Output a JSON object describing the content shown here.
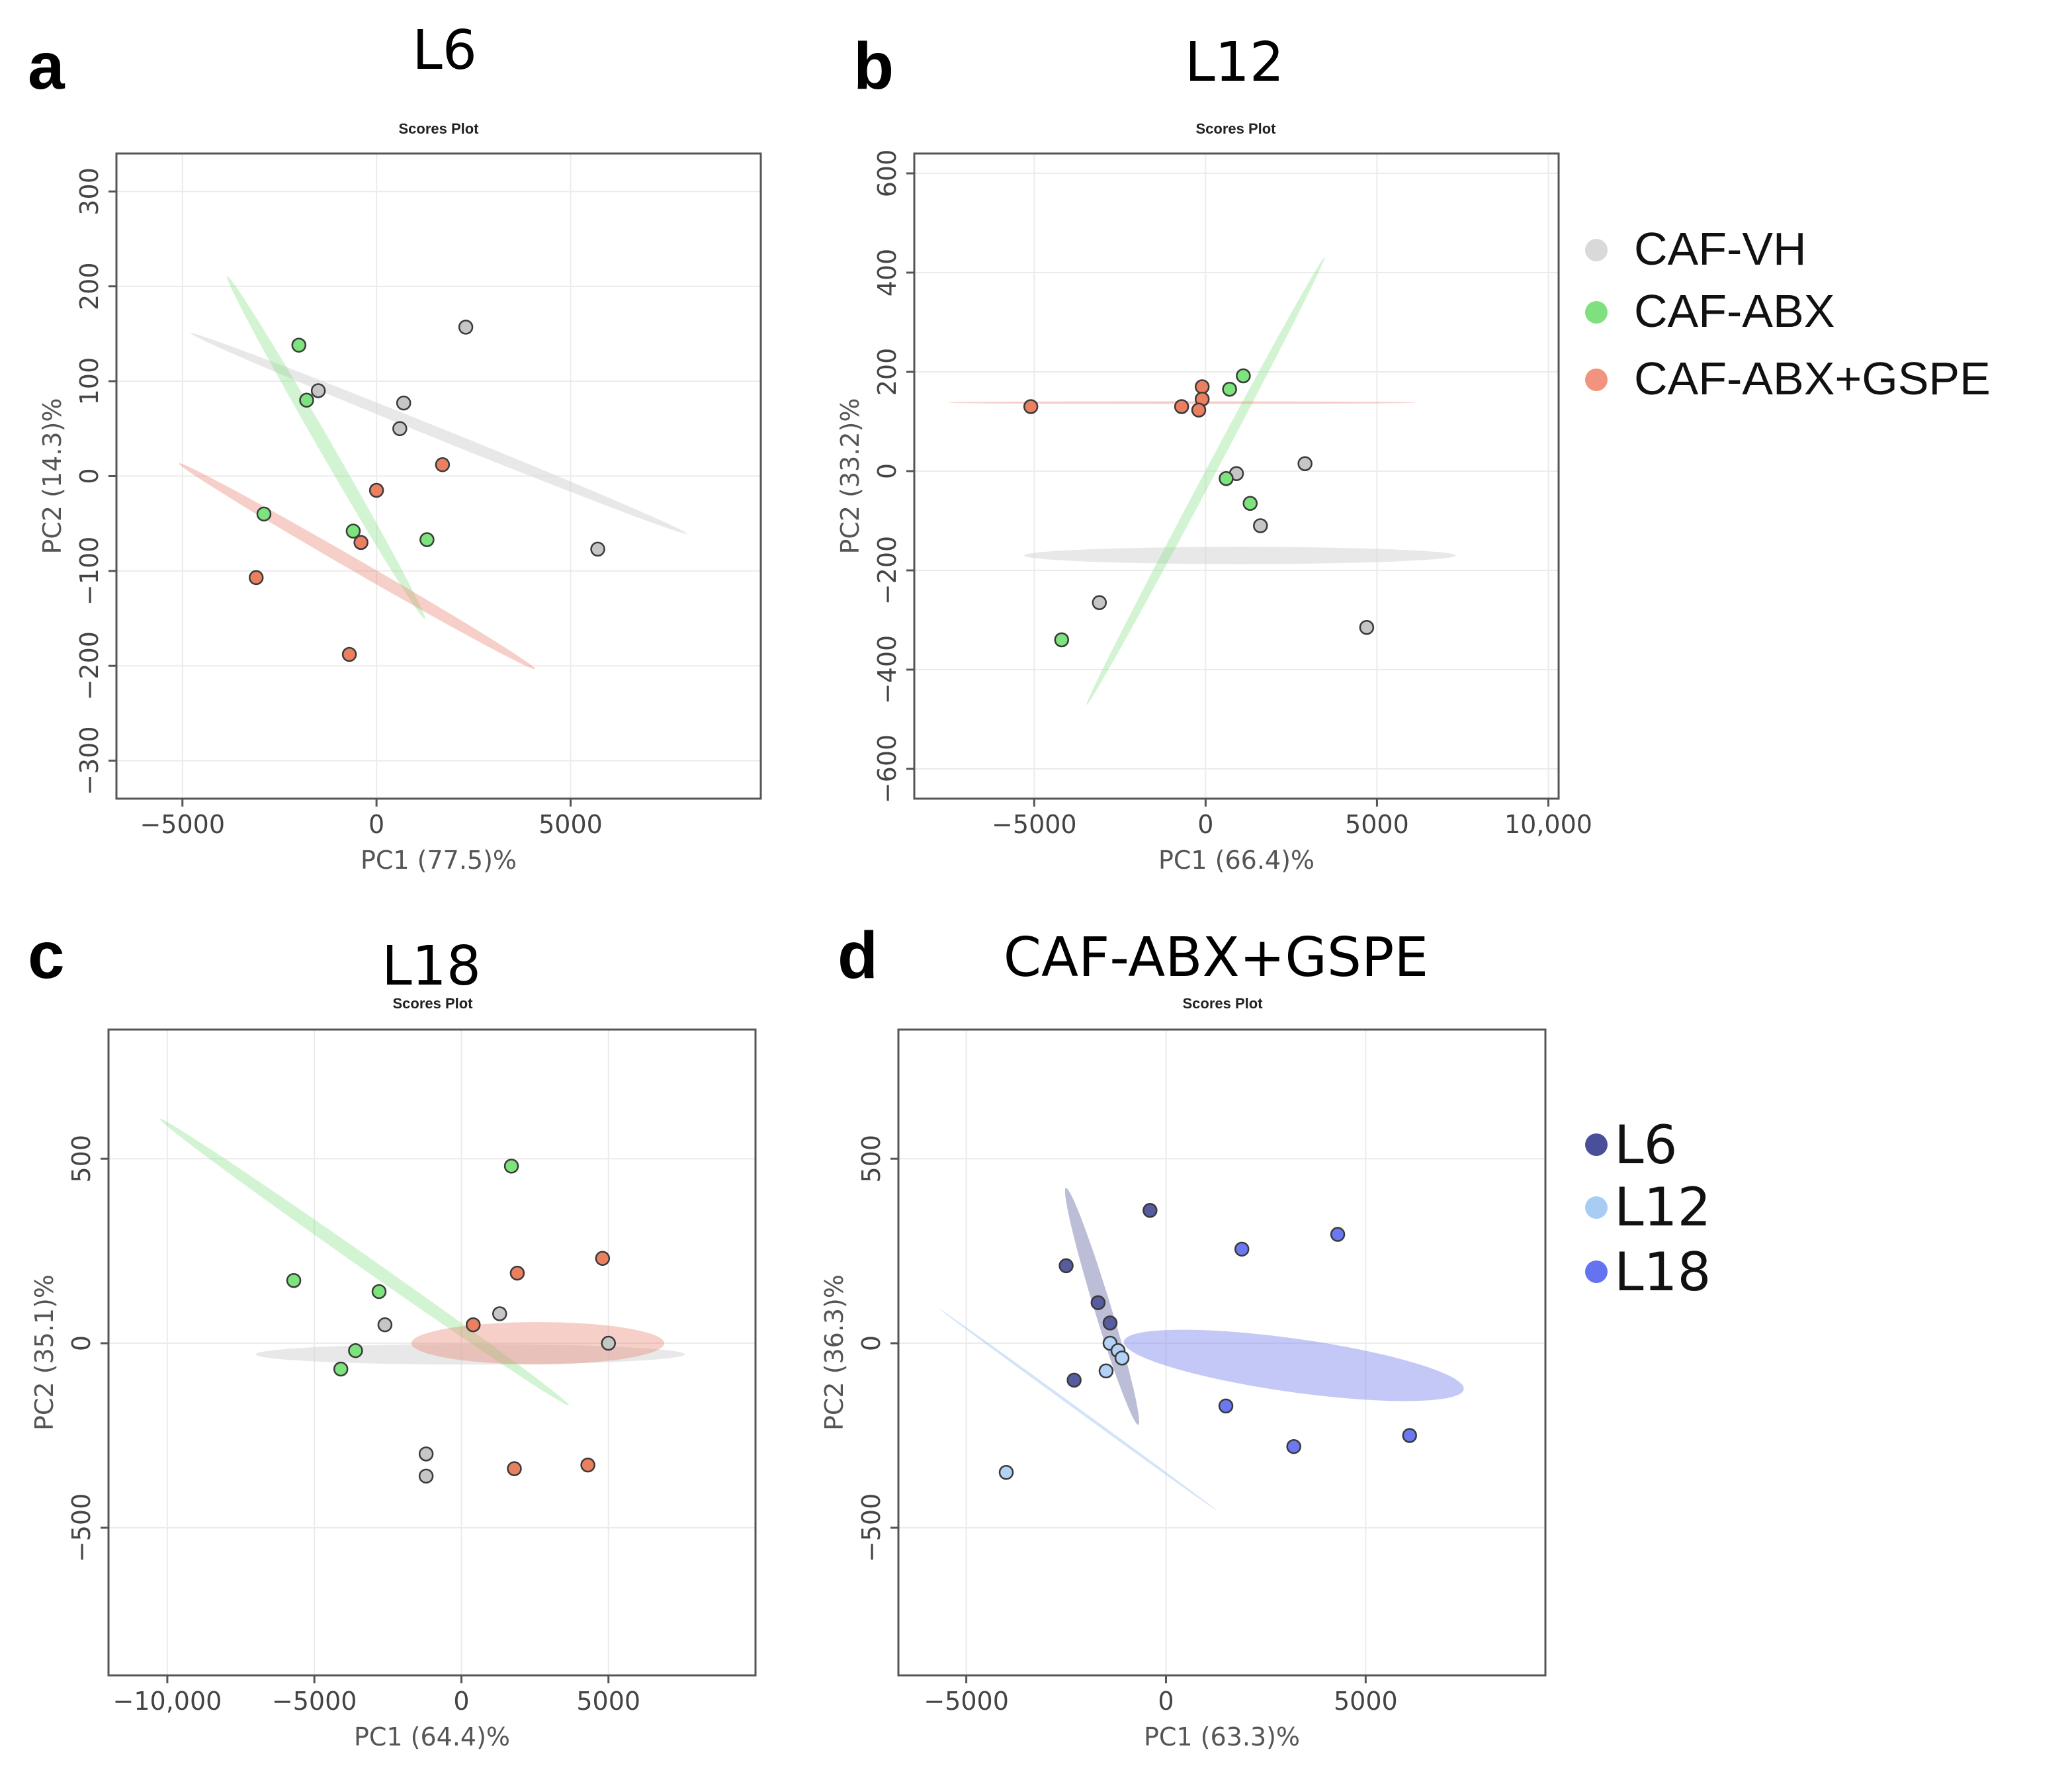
{
  "figure": {
    "legends": [
      {
        "name": "treatment-legend",
        "items": [
          {
            "label": "CAF-VH",
            "color": "#d9d9d9"
          },
          {
            "label": "CAF-ABX",
            "color": "#7ee07e"
          },
          {
            "label": "CAF-ABX+GSPE",
            "color": "#f2937f"
          }
        ]
      },
      {
        "name": "lactation-legend",
        "items": [
          {
            "label": "L6",
            "color": "#4a4f9a"
          },
          {
            "label": "L12",
            "color": "#a9ccf5"
          },
          {
            "label": "L18",
            "color": "#6673f0"
          }
        ]
      }
    ]
  },
  "chart_data": [
    {
      "type": "scatter",
      "panel_label": "a",
      "title": "L6",
      "subtitle": "Scores Plot",
      "xlabel": "PC1 (77.5)%",
      "ylabel": "PC2 (14.3)%",
      "xlim": [
        -6700,
        9900
      ],
      "ylim": [
        -340,
        340
      ],
      "xticks": [
        -5000,
        0,
        5000
      ],
      "xtick_labels": [
        "−5000",
        "0",
        "5000"
      ],
      "yticks": [
        -300,
        -200,
        -100,
        0,
        100,
        200,
        300
      ],
      "ytick_labels": [
        "−300",
        "−200",
        "−100",
        "0",
        "100",
        "200",
        "300"
      ],
      "ellipses": [
        {
          "series": "CAF-VH",
          "cx": 1600,
          "cy": 45,
          "rx": 6900,
          "ry": 145,
          "angle_deg": -22
        },
        {
          "series": "CAF-ABX",
          "cx": -1300,
          "cy": 30,
          "rx": 5100,
          "ry": 173,
          "angle_deg": -60
        },
        {
          "series": "CAF-ABX+GSPE",
          "cx": -500,
          "cy": -95,
          "rx": 5300,
          "ry": 160,
          "angle_deg": -30
        }
      ],
      "series": [
        {
          "name": "CAF-VH",
          "points": [
            [
              2300,
              157
            ],
            [
              -1500,
              90
            ],
            [
              700,
              77
            ],
            [
              600,
              50
            ],
            [
              5700,
              -77
            ]
          ]
        },
        {
          "name": "CAF-ABX",
          "points": [
            [
              -2000,
              138
            ],
            [
              -1800,
              80
            ],
            [
              -2900,
              -40
            ],
            [
              -600,
              -58
            ],
            [
              1300,
              -67
            ]
          ]
        },
        {
          "name": "CAF-ABX+GSPE",
          "points": [
            [
              1700,
              12
            ],
            [
              0,
              -15
            ],
            [
              -400,
              -70
            ],
            [
              -3100,
              -107
            ],
            [
              -700,
              -188
            ]
          ]
        }
      ]
    },
    {
      "type": "scatter",
      "panel_label": "b",
      "title": "L12",
      "subtitle": "Scores Plot",
      "xlabel": "PC1 (66.4)%",
      "ylabel": "PC2 (33.2)%",
      "xlim": [
        -8500,
        10300
      ],
      "ylim": [
        -660,
        640
      ],
      "xticks": [
        -5000,
        0,
        5000,
        10000
      ],
      "xtick_labels": [
        "−5000",
        "0",
        "5000",
        "10,000"
      ],
      "yticks": [
        -600,
        -400,
        -200,
        0,
        200,
        400,
        600
      ],
      "ytick_labels": [
        "−600",
        "−400",
        "−200",
        "0",
        "200",
        "400",
        "600"
      ],
      "ellipses": [
        {
          "series": "CAF-VH",
          "cx": 1000,
          "cy": -170,
          "rx": 6300,
          "ry": 250,
          "angle_deg": 0
        },
        {
          "series": "CAF-ABX",
          "cx": 0,
          "cy": -20,
          "rx": 7400,
          "ry": 145,
          "angle_deg": 62
        },
        {
          "series": "CAF-ABX+GSPE",
          "cx": -700,
          "cy": 138,
          "rx": 6800,
          "ry": 40,
          "angle_deg": 0
        }
      ],
      "series": [
        {
          "name": "CAF-VH",
          "points": [
            [
              900,
              -5
            ],
            [
              2900,
              15
            ],
            [
              1600,
              -110
            ],
            [
              -3100,
              -265
            ],
            [
              4700,
              -315
            ]
          ]
        },
        {
          "name": "CAF-ABX",
          "points": [
            [
              1100,
              192
            ],
            [
              700,
              165
            ],
            [
              600,
              -15
            ],
            [
              1300,
              -65
            ],
            [
              -4200,
              -340
            ]
          ]
        },
        {
          "name": "CAF-ABX+GSPE",
          "points": [
            [
              -5100,
              130
            ],
            [
              -700,
              130
            ],
            [
              -100,
              170
            ],
            [
              -100,
              145
            ],
            [
              -200,
              123
            ]
          ]
        }
      ]
    },
    {
      "type": "scatter",
      "panel_label": "c",
      "title": "L18",
      "subtitle": "Scores Plot",
      "xlabel": "PC1 (64.4)%",
      "ylabel": "PC2 (35.1)%",
      "xlim": [
        -12000,
        10000
      ],
      "ylim": [
        -900,
        850
      ],
      "xticks": [
        -10000,
        -5000,
        0,
        5000
      ],
      "xtick_labels": [
        "−10,000",
        "−5000",
        "0",
        "5000"
      ],
      "yticks": [
        -500,
        0,
        500
      ],
      "ytick_labels": [
        "−500",
        "0",
        "500"
      ],
      "ellipses": [
        {
          "series": "CAF-VH",
          "cx": 300,
          "cy": -30,
          "rx": 7300,
          "ry": 350,
          "angle_deg": 0
        },
        {
          "series": "CAF-ABX",
          "cx": -3300,
          "cy": 220,
          "rx": 8500,
          "ry": 220,
          "angle_deg": -35
        },
        {
          "series": "CAF-ABX+GSPE",
          "cx": 2600,
          "cy": 0,
          "rx": 4300,
          "ry": 720,
          "angle_deg": 0
        }
      ],
      "series": [
        {
          "name": "CAF-VH",
          "points": [
            [
              -2600,
              50
            ],
            [
              1300,
              80
            ],
            [
              5000,
              0
            ],
            [
              -1200,
              -300
            ],
            [
              -1200,
              -360
            ]
          ]
        },
        {
          "name": "CAF-ABX",
          "points": [
            [
              1700,
              480
            ],
            [
              -5700,
              170
            ],
            [
              -2800,
              140
            ],
            [
              -3600,
              -20
            ],
            [
              -4100,
              -70
            ]
          ]
        },
        {
          "name": "CAF-ABX+GSPE",
          "points": [
            [
              4800,
              230
            ],
            [
              1900,
              190
            ],
            [
              400,
              50
            ],
            [
              1800,
              -340
            ],
            [
              4300,
              -330
            ]
          ]
        }
      ]
    },
    {
      "type": "scatter",
      "panel_label": "d",
      "title": "CAF-ABX+GSPE",
      "subtitle": "Scores Plot",
      "xlabel": "PC1 (63.3)%",
      "ylabel": "PC2 (36.3)%",
      "xlim": [
        -6700,
        9500
      ],
      "ylim": [
        -900,
        850
      ],
      "xticks": [
        -5000,
        0,
        5000
      ],
      "xtick_labels": [
        "−5000",
        "0",
        "5000"
      ],
      "yticks": [
        -500,
        0,
        500
      ],
      "ytick_labels": [
        "−500",
        "0",
        "500"
      ],
      "ellipses": [
        {
          "series": "L6",
          "cx": -1600,
          "cy": 100,
          "rx": 3100,
          "ry": 210,
          "angle_deg": -73
        },
        {
          "series": "L12",
          "cx": -2200,
          "cy": -180,
          "rx": 4300,
          "ry": 38,
          "angle_deg": -36
        },
        {
          "series": "L18",
          "cx": 3200,
          "cy": -60,
          "rx": 4300,
          "ry": 670,
          "angle_deg": -8
        }
      ],
      "series": [
        {
          "name": "L6",
          "points": [
            [
              -400,
              360
            ],
            [
              -2500,
              210
            ],
            [
              -1700,
              110
            ],
            [
              -1400,
              55
            ],
            [
              -2300,
              -100
            ]
          ]
        },
        {
          "name": "L12",
          "points": [
            [
              -1400,
              0
            ],
            [
              -1200,
              -20
            ],
            [
              -1100,
              -40
            ],
            [
              -1500,
              -75
            ],
            [
              -4000,
              -350
            ]
          ]
        },
        {
          "name": "L18",
          "points": [
            [
              4300,
              295
            ],
            [
              1900,
              255
            ],
            [
              1500,
              -170
            ],
            [
              3200,
              -280
            ],
            [
              6100,
              -250
            ]
          ]
        }
      ]
    }
  ]
}
